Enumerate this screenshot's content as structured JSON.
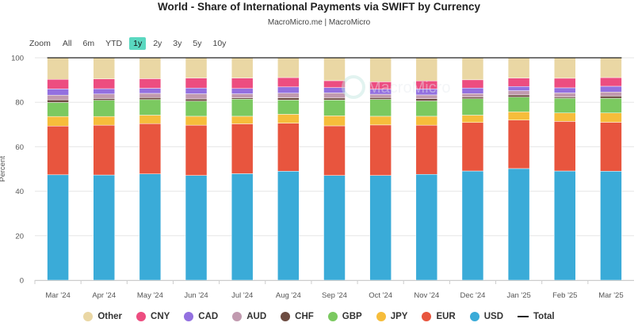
{
  "title": "World - Share of International Payments via SWIFT by Currency",
  "subtitle": "MacroMicro.me | MacroMicro",
  "watermark": "MacroMicro",
  "zoom": {
    "label": "Zoom",
    "buttons": [
      "All",
      "6m",
      "YTD",
      "1y",
      "2y",
      "3y",
      "5y",
      "10y"
    ],
    "active": "1y"
  },
  "chart_data": {
    "type": "bar",
    "stacked": true,
    "title": "World - Share of International Payments via SWIFT by Currency",
    "ylabel": "Percent",
    "ylim": [
      0,
      100
    ],
    "yticks": [
      "0",
      "20",
      "40",
      "60",
      "80",
      "100"
    ],
    "categories": [
      "Mar '24",
      "Apr '24",
      "May '24",
      "Jun '24",
      "Jul '24",
      "Aug '24",
      "Sep '24",
      "Oct '24",
      "Nov '24",
      "Dec '24",
      "Jan '25",
      "Feb '25",
      "Mar '25"
    ],
    "series": [
      {
        "name": "USD",
        "color": "#3aabd8",
        "values": [
          47.4,
          47.3,
          47.8,
          47.1,
          47.9,
          49.0,
          47.1,
          47.1,
          47.6,
          49.1,
          50.2,
          49.1,
          49.0
        ]
      },
      {
        "name": "EUR",
        "color": "#e8553e",
        "values": [
          21.9,
          22.4,
          22.6,
          22.6,
          22.4,
          21.6,
          22.3,
          22.7,
          22.1,
          21.8,
          21.8,
          22.3,
          22.0
        ]
      },
      {
        "name": "JPY",
        "color": "#f6bd3b",
        "values": [
          4.3,
          3.9,
          3.8,
          4.0,
          3.4,
          4.0,
          4.5,
          3.9,
          4.0,
          3.3,
          3.7,
          3.8,
          4.2
        ]
      },
      {
        "name": "GBP",
        "color": "#7bc960",
        "values": [
          6.3,
          7.3,
          7.0,
          6.8,
          7.7,
          6.4,
          7.1,
          7.6,
          6.9,
          7.4,
          6.6,
          6.6,
          6.6
        ]
      },
      {
        "name": "CHF",
        "color": "#6d4c41",
        "values": [
          1.2,
          0.8,
          0.9,
          1.0,
          0.6,
          1.0,
          0.9,
          0.8,
          1.0,
          0.8,
          1.0,
          0.6,
          1.0
        ]
      },
      {
        "name": "AUD",
        "color": "#c19aaf",
        "values": [
          2.1,
          2.0,
          1.9,
          2.3,
          1.8,
          2.1,
          2.3,
          1.5,
          1.7,
          1.5,
          1.9,
          1.8,
          1.8
        ]
      },
      {
        "name": "CAD",
        "color": "#9370e0",
        "values": [
          2.8,
          2.4,
          2.3,
          2.6,
          2.4,
          2.8,
          2.4,
          2.3,
          2.7,
          2.5,
          1.9,
          2.3,
          2.6
        ]
      },
      {
        "name": "CNY",
        "color": "#ed4d80",
        "values": [
          4.3,
          4.4,
          4.3,
          4.5,
          4.7,
          4.2,
          3.1,
          3.3,
          3.6,
          3.7,
          3.8,
          4.3,
          3.9
        ]
      },
      {
        "name": "Other",
        "color": "#ead7a4",
        "values": [
          9.7,
          9.5,
          9.4,
          9.1,
          9.1,
          8.9,
          10.3,
          10.8,
          10.4,
          9.9,
          9.1,
          9.2,
          8.9
        ]
      }
    ],
    "legend": [
      {
        "name": "Other",
        "color": "#ead7a4",
        "symbol": "circle"
      },
      {
        "name": "CNY",
        "color": "#ed4d80",
        "symbol": "circle"
      },
      {
        "name": "CAD",
        "color": "#9370e0",
        "symbol": "circle"
      },
      {
        "name": "AUD",
        "color": "#c19aaf",
        "symbol": "circle"
      },
      {
        "name": "CHF",
        "color": "#6d4c41",
        "symbol": "circle"
      },
      {
        "name": "GBP",
        "color": "#7bc960",
        "symbol": "circle"
      },
      {
        "name": "JPY",
        "color": "#f6bd3b",
        "symbol": "circle"
      },
      {
        "name": "EUR",
        "color": "#e8553e",
        "symbol": "circle"
      },
      {
        "name": "USD",
        "color": "#3aabd8",
        "symbol": "circle"
      },
      {
        "name": "Total",
        "color": "#222222",
        "symbol": "line"
      }
    ],
    "total_line": {
      "name": "Total",
      "value": 100
    }
  }
}
